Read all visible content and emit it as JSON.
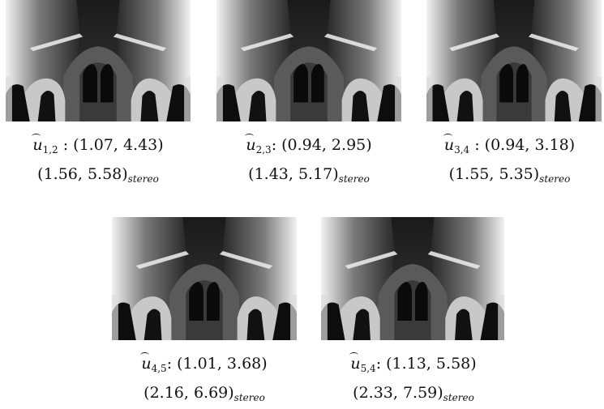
{
  "figures": [
    {
      "id": "u12",
      "var": "u",
      "sub": "1,2",
      "sep": " : ",
      "estimate": "(1.07, 4.43)",
      "stereo": "(1.56, 5.58)",
      "stereo_sub": "stereo"
    },
    {
      "id": "u23",
      "var": "u",
      "sub": "2,3",
      "sep": ": ",
      "estimate": "(0.94, 2.95)",
      "stereo": "(1.43, 5.17)",
      "stereo_sub": "stereo"
    },
    {
      "id": "u34",
      "var": "u",
      "sub": "3,4",
      "sep": " : ",
      "estimate": "(0.94, 3.18)",
      "stereo": "(1.55, 5.35)",
      "stereo_sub": "stereo"
    },
    {
      "id": "u45",
      "var": "u",
      "sub": "4,5",
      "sep": ": ",
      "estimate": "(1.01, 3.68)",
      "stereo": "(2.16, 6.69)",
      "stereo_sub": "stereo"
    },
    {
      "id": "u54",
      "var": "u",
      "sub": "5,4",
      "sep": ": ",
      "estimate": "(1.13, 5.58)",
      "stereo": "(2.33, 7.59)",
      "stereo_sub": "stereo"
    }
  ]
}
